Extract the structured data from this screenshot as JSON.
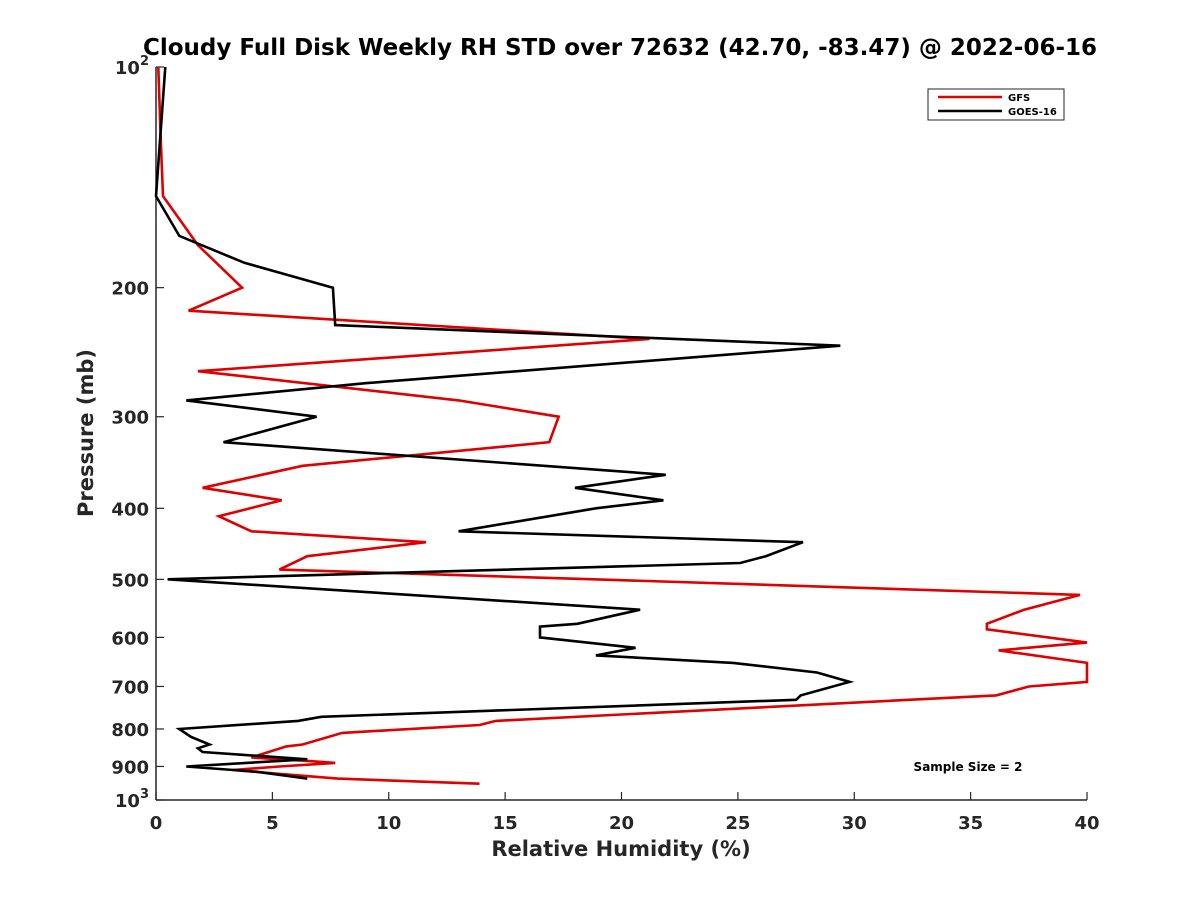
{
  "chart_data": {
    "type": "line",
    "title": "Cloudy Full Disk Weekly RH STD over 72632 (42.70, -83.47) @ 2022-06-16",
    "xlabel": "Relative Humidity (%)",
    "ylabel": "Pressure (mb)",
    "xlim": [
      0,
      40
    ],
    "ylim": [
      100,
      1000
    ],
    "y_scale": "log",
    "y_reversed": true,
    "grid": false,
    "legend_position": "top-right",
    "x_ticks": [
      "0",
      "5",
      "10",
      "15",
      "20",
      "25",
      "30",
      "35",
      "40"
    ],
    "y_ticks": [
      {
        "value": 100,
        "base": "10",
        "exp": "2"
      },
      {
        "value": 200,
        "label": "200"
      },
      {
        "value": 300,
        "label": "300"
      },
      {
        "value": 400,
        "label": "400"
      },
      {
        "value": 500,
        "label": "500"
      },
      {
        "value": 600,
        "label": "600"
      },
      {
        "value": 700,
        "label": "700"
      },
      {
        "value": 800,
        "label": "800"
      },
      {
        "value": 900,
        "label": "900"
      },
      {
        "value": 1000,
        "base": "10",
        "exp": "3"
      }
    ],
    "annotation": "Sample Size = 2",
    "series": [
      {
        "name": "GFS",
        "color": "#e00000",
        "points": [
          [
            0.1,
            100
          ],
          [
            0.2,
            125
          ],
          [
            0.3,
            150
          ],
          [
            1.8,
            175
          ],
          [
            3.7,
            200
          ],
          [
            1.4,
            215
          ],
          [
            21.2,
            235
          ],
          [
            1.8,
            260
          ],
          [
            13.0,
            285
          ],
          [
            17.3,
            300
          ],
          [
            16.9,
            325
          ],
          [
            6.3,
            350
          ],
          [
            2.0,
            375
          ],
          [
            5.4,
            390
          ],
          [
            2.7,
            410
          ],
          [
            4.1,
            430
          ],
          [
            11.6,
            445
          ],
          [
            6.5,
            465
          ],
          [
            5.3,
            485
          ],
          [
            18.8,
            500
          ],
          [
            39.7,
            525
          ],
          [
            37.3,
            550
          ],
          [
            35.7,
            575
          ],
          [
            35.7,
            585
          ],
          [
            40.0,
            610
          ],
          [
            36.2,
            625
          ],
          [
            40.0,
            650
          ],
          [
            40.0,
            690
          ],
          [
            37.5,
            700
          ],
          [
            36.1,
            720
          ],
          [
            14.6,
            780
          ],
          [
            13.9,
            790
          ],
          [
            8.0,
            810
          ],
          [
            6.3,
            840
          ],
          [
            5.6,
            845
          ],
          [
            4.1,
            875
          ],
          [
            6.6,
            885
          ],
          [
            7.7,
            890
          ],
          [
            5.3,
            900
          ],
          [
            3.3,
            910
          ],
          [
            6.0,
            925
          ],
          [
            7.8,
            935
          ],
          [
            13.9,
            950
          ]
        ]
      },
      {
        "name": "GOES-16",
        "color": "#000000",
        "points": [
          [
            0.4,
            100
          ],
          [
            0.0,
            150
          ],
          [
            1.0,
            170
          ],
          [
            3.8,
            185
          ],
          [
            7.6,
            200
          ],
          [
            7.7,
            225
          ],
          [
            29.4,
            240
          ],
          [
            9.0,
            270
          ],
          [
            1.3,
            285
          ],
          [
            6.9,
            300
          ],
          [
            2.9,
            325
          ],
          [
            21.9,
            360
          ],
          [
            18.0,
            375
          ],
          [
            21.8,
            390
          ],
          [
            18.9,
            400
          ],
          [
            13.0,
            430
          ],
          [
            27.8,
            445
          ],
          [
            26.2,
            465
          ],
          [
            25.1,
            475
          ],
          [
            0.5,
            500
          ],
          [
            20.8,
            550
          ],
          [
            18.1,
            575
          ],
          [
            16.5,
            580
          ],
          [
            16.5,
            600
          ],
          [
            20.6,
            620
          ],
          [
            18.9,
            635
          ],
          [
            24.8,
            650
          ],
          [
            28.4,
            670
          ],
          [
            29.8,
            690
          ],
          [
            27.7,
            720
          ],
          [
            27.5,
            730
          ],
          [
            7.1,
            770
          ],
          [
            6.1,
            780
          ],
          [
            1.0,
            800
          ],
          [
            1.5,
            820
          ],
          [
            2.3,
            840
          ],
          [
            1.8,
            850
          ],
          [
            2.0,
            860
          ],
          [
            6.5,
            880
          ],
          [
            1.3,
            900
          ],
          [
            4.3,
            915
          ],
          [
            6.5,
            935
          ]
        ]
      }
    ]
  }
}
